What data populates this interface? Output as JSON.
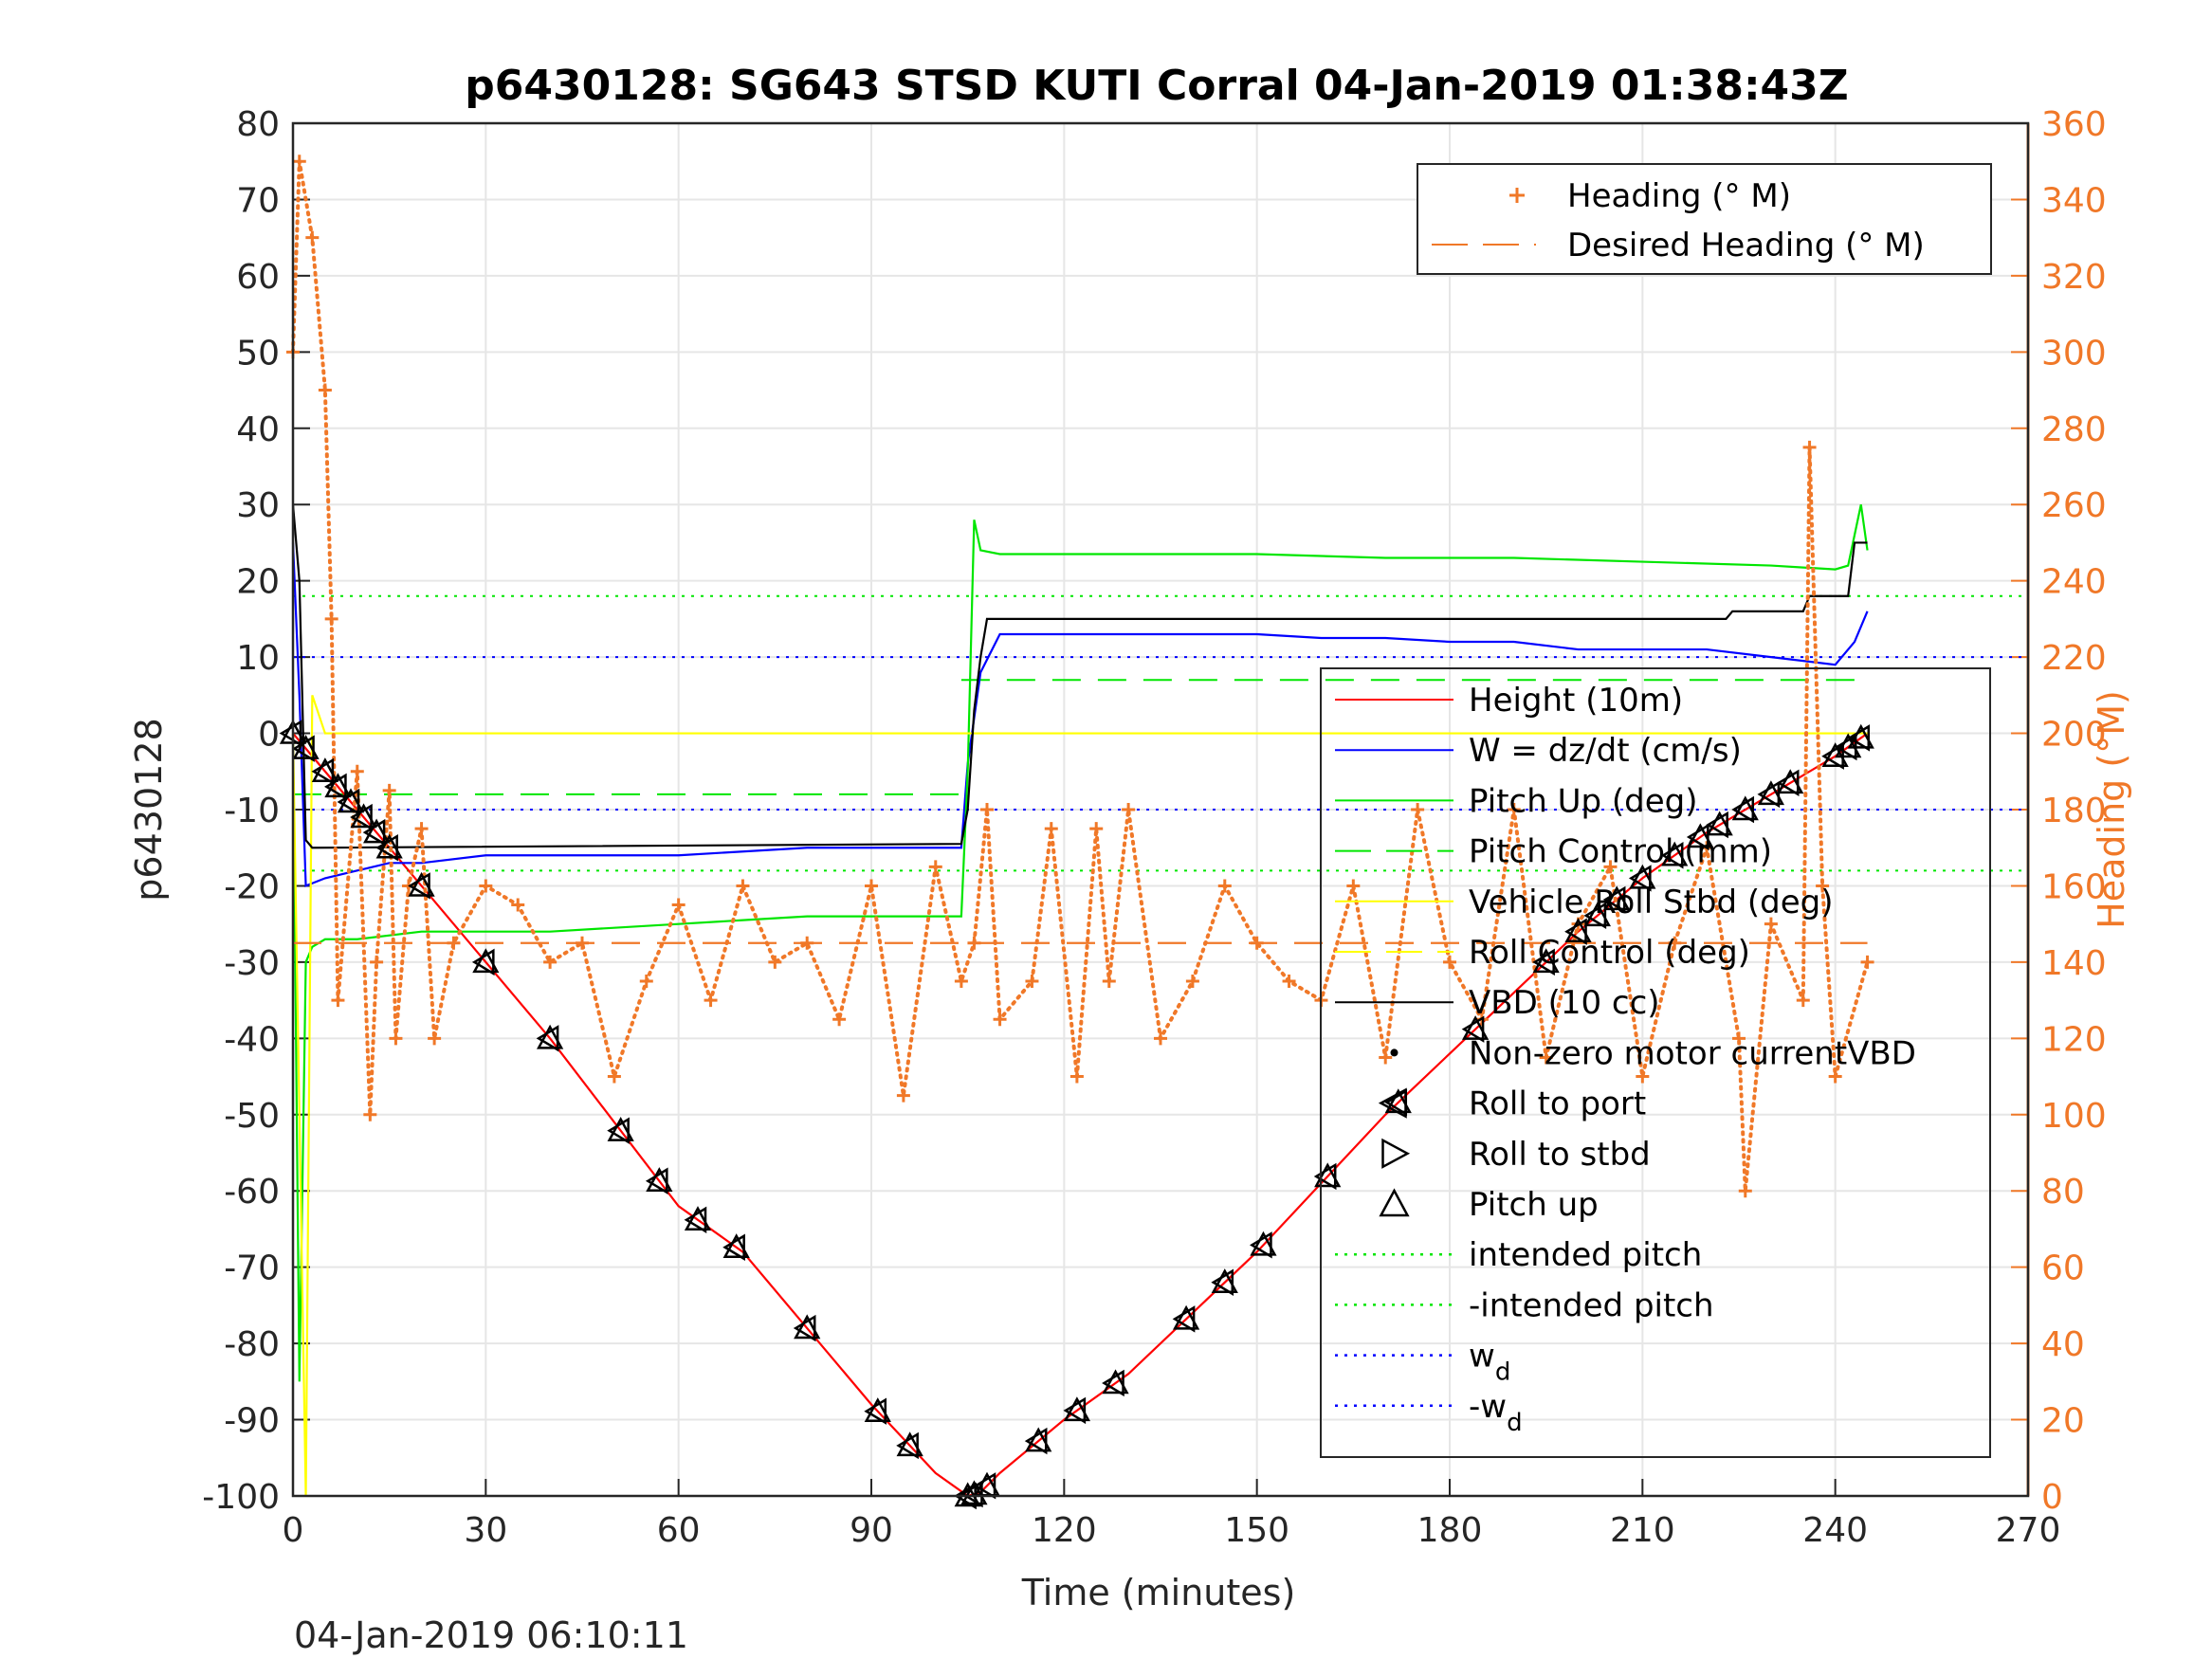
{
  "chart_data": {
    "type": "line",
    "title": "p6430128: SG643 STSD KUTI Corral 04-Jan-2019 01:38:43Z",
    "footer": "04-Jan-2019 06:10:11",
    "xlabel": "Time (minutes)",
    "ylabel_left": "p6430128",
    "ylabel_right": "Heading (°M)",
    "xlim": [
      0,
      270
    ],
    "ylim_left": [
      -100,
      80
    ],
    "ylim_right": [
      0,
      360
    ],
    "x_ticks": [
      "0",
      "30",
      "60",
      "90",
      "120",
      "150",
      "180",
      "210",
      "240",
      "270"
    ],
    "y_ticks_left": [
      "80",
      "70",
      "60",
      "50",
      "40",
      "30",
      "20",
      "10",
      "0",
      "-10",
      "-20",
      "-30",
      "-40",
      "-50",
      "-60",
      "-70",
      "-80",
      "-90",
      "-100"
    ],
    "y_ticks_right": [
      "360",
      "340",
      "320",
      "300",
      "280",
      "260",
      "240",
      "220",
      "200",
      "180",
      "160",
      "140",
      "120",
      "100",
      "80",
      "60",
      "40",
      "20",
      "0"
    ],
    "colors": {
      "height": "#ff0000",
      "w": "#0000ff",
      "pitch": "#00e600",
      "roll": "#ffff00",
      "vbd": "#000000",
      "heading": "#f07828",
      "right_axis": "#f07828"
    },
    "legend_right_axis": [
      {
        "label": "Heading (° M)",
        "marker": "plus",
        "color": "#f07828"
      },
      {
        "label": "Desired Heading (° M)",
        "marker": "dash",
        "color": "#f07828"
      }
    ],
    "legend_left_axis": [
      {
        "label": "Height (10m)",
        "marker": "line",
        "color": "#ff0000"
      },
      {
        "label": "W = dz/dt (cm/s)",
        "marker": "line",
        "color": "#0000ff"
      },
      {
        "label": "Pitch Up (deg)",
        "marker": "line",
        "color": "#00e600"
      },
      {
        "label": "Pitch Control (mm)",
        "marker": "dash",
        "color": "#00e600"
      },
      {
        "label": "Vehicle Roll Stbd (deg)",
        "marker": "line",
        "color": "#ffff00"
      },
      {
        "label": "Roll Control (deg)",
        "marker": "dash",
        "color": "#ffff00"
      },
      {
        "label": "VBD (10 cc)",
        "marker": "line",
        "color": "#000000"
      },
      {
        "label": "Non-zero motor currentVBD",
        "marker": "dot",
        "color": "#000000"
      },
      {
        "label": "Roll to port",
        "marker": "tri-left",
        "color": "#000000"
      },
      {
        "label": "Roll to stbd",
        "marker": "tri-right",
        "color": "#000000"
      },
      {
        "label": "Pitch up",
        "marker": "tri-up",
        "color": "#000000"
      },
      {
        "label": "intended pitch",
        "marker": "dotted",
        "color": "#00e600"
      },
      {
        "label": "-intended pitch",
        "marker": "dotted",
        "color": "#00e600"
      },
      {
        "label": "w",
        "sub": "d",
        "marker": "dotted",
        "color": "#0000ff"
      },
      {
        "label": "-w",
        "sub": "d",
        "marker": "dotted",
        "color": "#0000ff"
      }
    ],
    "reference_lines": {
      "intended_pitch": 18,
      "neg_intended_pitch": -18,
      "wd": 10,
      "neg_wd": -10
    },
    "series": [
      {
        "name": "Height (10m)",
        "x": [
          0,
          2,
          10,
          20,
          30,
          40,
          50,
          60,
          70,
          80,
          90,
          100,
          105,
          107,
          110,
          120,
          130,
          140,
          150,
          160,
          170,
          180,
          190,
          200,
          210,
          220,
          230,
          240,
          245
        ],
        "values": [
          0,
          -2,
          -10,
          -20,
          -30,
          -40,
          -51,
          -62,
          -68,
          -78,
          -88,
          -97,
          -100,
          -99.5,
          -97,
          -90,
          -84,
          -76,
          -68,
          -59,
          -50,
          -42,
          -34,
          -26,
          -19,
          -13,
          -8,
          -3,
          0
        ]
      },
      {
        "name": "W = dz/dt (cm/s)",
        "x": [
          0,
          1,
          2,
          5,
          10,
          15,
          20,
          30,
          40,
          50,
          60,
          70,
          80,
          90,
          100,
          104,
          105,
          107,
          110,
          120,
          130,
          140,
          150,
          160,
          170,
          180,
          190,
          200,
          210,
          220,
          230,
          240,
          243,
          245
        ],
        "values": [
          25,
          5,
          -20,
          -19,
          -18,
          -17,
          -17,
          -16,
          -16,
          -16,
          -16,
          -15.5,
          -15,
          -15,
          -15,
          -15,
          -4,
          8,
          13,
          13,
          13,
          13,
          13,
          12.5,
          12.5,
          12,
          12,
          11,
          11,
          11,
          10,
          9,
          12,
          16
        ]
      },
      {
        "name": "Pitch Up (deg)",
        "x": [
          0,
          1,
          2,
          3,
          5,
          10,
          20,
          30,
          40,
          50,
          60,
          70,
          80,
          90,
          100,
          104,
          105,
          106,
          107,
          110,
          130,
          150,
          170,
          190,
          210,
          230,
          240,
          242,
          244,
          245
        ],
        "values": [
          0,
          -85,
          -30,
          -28,
          -27,
          -27,
          -26,
          -26,
          -26,
          -25.5,
          -25,
          -24.5,
          -24,
          -24,
          -24,
          -24,
          -5,
          28,
          24,
          23.5,
          23.5,
          23.5,
          23,
          23,
          22.5,
          22,
          21.5,
          22,
          30,
          24
        ]
      },
      {
        "name": "Vehicle Roll Stbd (deg)",
        "x": [
          0,
          2,
          3,
          5,
          10,
          20,
          40,
          60,
          80,
          100,
          104,
          105,
          110,
          130,
          150,
          170,
          190,
          210,
          230,
          240,
          245
        ],
        "values": [
          0,
          -100,
          5,
          0,
          0,
          0,
          0,
          0,
          0,
          0,
          0,
          0,
          0,
          0,
          0,
          0,
          0,
          0,
          0,
          0,
          0
        ]
      },
      {
        "name": "VBD (10 cc)",
        "x": [
          0,
          1,
          2,
          3,
          104,
          105,
          106,
          107,
          108,
          150,
          200,
          223,
          224,
          235,
          236,
          242,
          243,
          245
        ],
        "values": [
          30,
          20,
          -14,
          -15,
          -14.5,
          -10,
          3,
          10,
          15,
          15,
          15,
          15,
          16,
          16,
          18,
          18,
          25,
          25
        ]
      },
      {
        "name": "Heading (° M)",
        "axis": "right",
        "x": [
          0,
          1,
          3,
          5,
          6,
          7,
          10,
          12,
          13,
          15,
          16,
          18,
          20,
          22,
          25,
          30,
          35,
          40,
          45,
          50,
          55,
          60,
          65,
          70,
          75,
          80,
          85,
          90,
          95,
          100,
          104,
          106,
          108,
          110,
          115,
          118,
          122,
          125,
          127,
          130,
          135,
          140,
          145,
          150,
          155,
          160,
          165,
          170,
          175,
          180,
          185,
          190,
          195,
          200,
          205,
          210,
          215,
          220,
          225,
          226,
          230,
          235,
          236,
          238,
          240,
          245
        ],
        "values": [
          300,
          350,
          330,
          290,
          230,
          130,
          190,
          100,
          140,
          185,
          120,
          160,
          175,
          120,
          145,
          160,
          155,
          140,
          145,
          110,
          135,
          155,
          130,
          160,
          140,
          145,
          125,
          160,
          105,
          165,
          135,
          145,
          180,
          125,
          135,
          175,
          110,
          175,
          135,
          180,
          120,
          135,
          160,
          145,
          135,
          130,
          160,
          115,
          180,
          140,
          125,
          180,
          115,
          150,
          165,
          110,
          145,
          170,
          120,
          80,
          150,
          130,
          275,
          160,
          110,
          140
        ]
      },
      {
        "name": "Desired Heading (° M)",
        "axis": "right",
        "x": [
          0,
          245
        ],
        "values": [
          145,
          145
        ]
      }
    ],
    "roll_markers_x": [
      0,
      2,
      5,
      7,
      9,
      11,
      13,
      15,
      20,
      30,
      40,
      51,
      57,
      63,
      69,
      80,
      91,
      96,
      105,
      106,
      108,
      116,
      122,
      128,
      139,
      145,
      151,
      161,
      172,
      184,
      195,
      200,
      203,
      206,
      210,
      215,
      219,
      222,
      226,
      230,
      233,
      240,
      242,
      244
    ]
  }
}
